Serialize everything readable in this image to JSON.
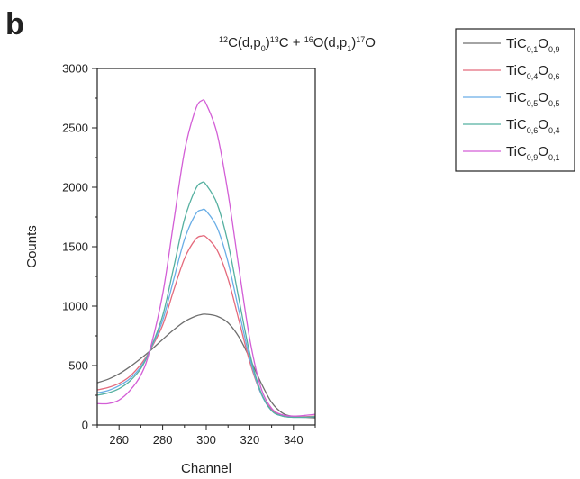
{
  "panel_label": "b",
  "chart_data": {
    "type": "line",
    "title_parts": [
      {
        "text": "12",
        "sup": true
      },
      {
        "text": "C(d,p"
      },
      {
        "text": "0",
        "sub": true
      },
      {
        "text": ")"
      },
      {
        "text": "13",
        "sup": true
      },
      {
        "text": "C + "
      },
      {
        "text": "16",
        "sup": true
      },
      {
        "text": "O(d,p"
      },
      {
        "text": "1",
        "sub": true
      },
      {
        "text": ")"
      },
      {
        "text": "17",
        "sup": true
      },
      {
        "text": "O"
      }
    ],
    "xlabel": "Channel",
    "ylabel": "Counts",
    "xlim": [
      250,
      350
    ],
    "ylim": [
      0,
      3000
    ],
    "xticks": [
      260,
      280,
      300,
      320,
      340
    ],
    "yticks": [
      0,
      500,
      1000,
      1500,
      2000,
      2500,
      3000
    ],
    "grid": false,
    "legend_position": "top-right",
    "series": [
      {
        "name_parts": [
          {
            "text": "TiC"
          },
          {
            "text": "0,1",
            "sub": true
          },
          {
            "text": "O"
          },
          {
            "text": "0,9",
            "sub": true
          }
        ],
        "color": "#6e6e6e",
        "x": [
          250,
          255,
          260,
          265,
          270,
          274,
          280,
          285,
          290,
          295,
          298,
          300,
          305,
          310,
          315,
          320,
          325,
          330,
          335,
          340,
          345,
          350
        ],
        "y": [
          355,
          385,
          430,
          490,
          560,
          620,
          720,
          800,
          870,
          915,
          930,
          932,
          915,
          860,
          740,
          560,
          360,
          190,
          100,
          70,
          65,
          60
        ]
      },
      {
        "name_parts": [
          {
            "text": "TiC"
          },
          {
            "text": "0,4",
            "sub": true
          },
          {
            "text": "O"
          },
          {
            "text": "0,6",
            "sub": true
          }
        ],
        "color": "#e46a7c",
        "x": [
          250,
          255,
          260,
          265,
          270,
          274,
          280,
          285,
          290,
          295,
          298,
          300,
          305,
          310,
          315,
          320,
          325,
          330,
          335,
          340,
          345,
          350
        ],
        "y": [
          295,
          315,
          350,
          410,
          510,
          620,
          840,
          1130,
          1400,
          1560,
          1590,
          1580,
          1470,
          1230,
          880,
          530,
          270,
          130,
          80,
          70,
          70,
          75
        ]
      },
      {
        "name_parts": [
          {
            "text": "TiC"
          },
          {
            "text": "0,5",
            "sub": true
          },
          {
            "text": "O"
          },
          {
            "text": "0,5",
            "sub": true
          }
        ],
        "color": "#6aaee6",
        "x": [
          250,
          255,
          260,
          265,
          270,
          274,
          280,
          285,
          290,
          295,
          298,
          300,
          305,
          310,
          315,
          320,
          325,
          330,
          335,
          340,
          345,
          350
        ],
        "y": [
          270,
          290,
          330,
          390,
          490,
          620,
          880,
          1220,
          1560,
          1770,
          1810,
          1800,
          1660,
          1370,
          960,
          560,
          270,
          120,
          75,
          65,
          65,
          70
        ]
      },
      {
        "name_parts": [
          {
            "text": "TiC"
          },
          {
            "text": "0,6",
            "sub": true
          },
          {
            "text": "O"
          },
          {
            "text": "0,4",
            "sub": true
          }
        ],
        "color": "#55b0a0",
        "x": [
          250,
          255,
          260,
          265,
          270,
          274,
          280,
          285,
          290,
          295,
          298,
          300,
          305,
          310,
          315,
          320,
          325,
          330,
          335,
          340,
          345,
          350
        ],
        "y": [
          250,
          270,
          305,
          370,
          475,
          620,
          920,
          1320,
          1730,
          1980,
          2040,
          2020,
          1860,
          1530,
          1060,
          600,
          280,
          120,
          75,
          65,
          65,
          70
        ]
      },
      {
        "name_parts": [
          {
            "text": "TiC"
          },
          {
            "text": "0,9",
            "sub": true
          },
          {
            "text": "O"
          },
          {
            "text": "0,1",
            "sub": true
          }
        ],
        "color": "#d35ed6",
        "x": [
          250,
          255,
          260,
          265,
          270,
          274,
          280,
          285,
          290,
          295,
          298,
          300,
          305,
          310,
          315,
          320,
          325,
          330,
          335,
          340,
          345,
          350
        ],
        "y": [
          180,
          180,
          210,
          290,
          420,
          620,
          1100,
          1700,
          2300,
          2650,
          2730,
          2700,
          2450,
          1950,
          1320,
          720,
          320,
          140,
          85,
          75,
          80,
          90
        ]
      }
    ]
  }
}
